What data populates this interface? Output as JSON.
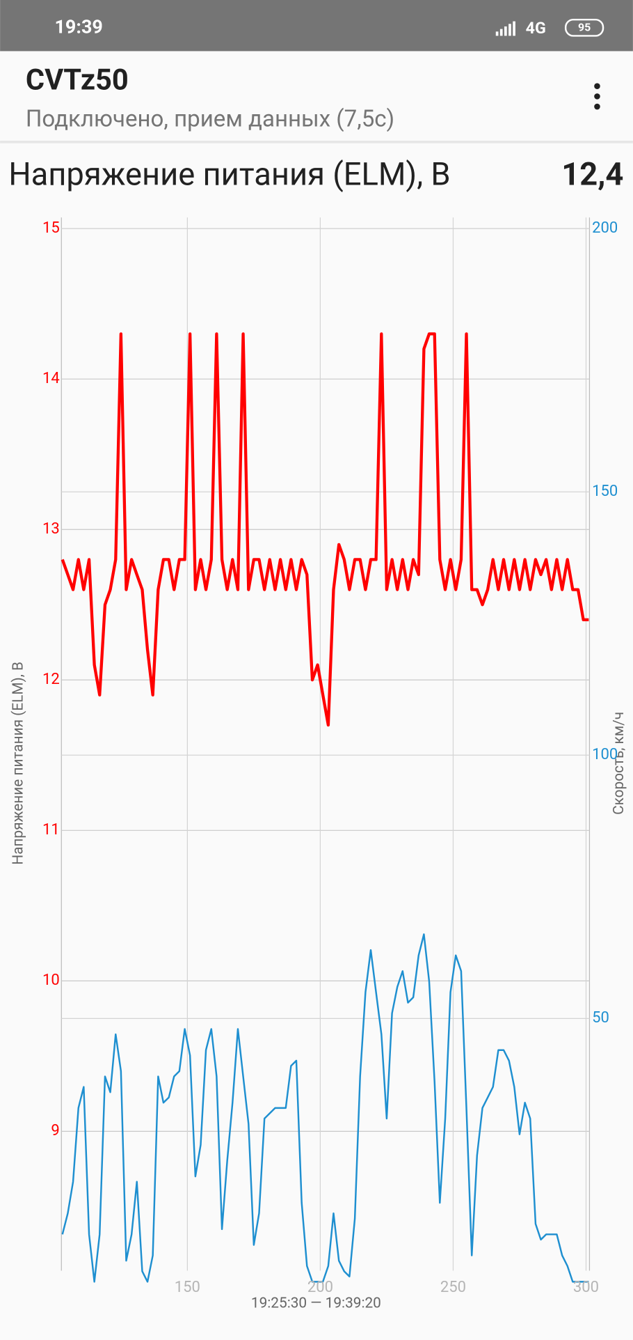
{
  "status_bar": {
    "time": "19:39",
    "network": "4G",
    "battery": "95"
  },
  "app_bar": {
    "title": "CVTz50",
    "subtitle": "Подключено, прием данных (7,5с)"
  },
  "header": {
    "label": "Напряжение питания (ELM), В",
    "value": "12,4"
  },
  "chart_data": {
    "type": "line",
    "x_label": "19:25:30 — 19:39:20",
    "y_label": "Напряжение питания (ELM), В",
    "y2_label": "Скорость, км/ч",
    "xlim": [
      102.6,
      301.3
    ],
    "xticks": [
      150,
      200,
      250,
      300
    ],
    "ylim": [
      8,
      15
    ],
    "yticks": [
      9,
      10,
      11,
      12,
      13,
      14,
      15
    ],
    "y2lim": [
      0,
      200
    ],
    "y2ticks": [
      50,
      100,
      150,
      200
    ],
    "grid": true,
    "x": [
      103,
      105,
      107,
      109,
      111,
      113,
      115,
      117,
      119,
      121,
      123,
      125,
      127,
      129,
      131,
      133,
      135,
      137,
      139,
      141,
      143,
      145,
      147,
      149,
      151,
      153,
      155,
      157,
      159,
      161,
      163,
      165,
      167,
      169,
      171,
      173,
      175,
      177,
      179,
      181,
      183,
      185,
      187,
      189,
      191,
      193,
      195,
      197,
      199,
      201,
      203,
      205,
      207,
      209,
      211,
      213,
      215,
      217,
      219,
      221,
      223,
      225,
      227,
      229,
      231,
      233,
      235,
      237,
      239,
      241,
      243,
      245,
      247,
      249,
      251,
      253,
      255,
      257,
      259,
      261,
      263,
      265,
      267,
      269,
      271,
      273,
      275,
      277,
      279,
      281,
      283,
      285,
      287,
      289,
      291,
      293,
      295,
      297,
      299,
      301
    ],
    "series": [
      {
        "name": "Напряжение питания (ELM), В",
        "color": "#ff0000",
        "axis": "y",
        "values": [
          12.8,
          12.7,
          12.6,
          12.8,
          12.6,
          12.8,
          12.1,
          11.9,
          12.5,
          12.6,
          12.8,
          14.3,
          12.6,
          12.8,
          12.7,
          12.6,
          12.2,
          11.9,
          12.6,
          12.8,
          12.8,
          12.6,
          12.8,
          12.8,
          14.3,
          12.6,
          12.8,
          12.6,
          12.8,
          14.3,
          12.8,
          12.6,
          12.8,
          12.6,
          14.3,
          12.6,
          12.8,
          12.8,
          12.6,
          12.8,
          12.6,
          12.8,
          12.6,
          12.8,
          12.6,
          12.8,
          12.7,
          12.0,
          12.1,
          11.9,
          11.7,
          12.6,
          12.9,
          12.8,
          12.6,
          12.8,
          12.8,
          12.6,
          12.8,
          12.8,
          14.3,
          12.6,
          12.8,
          12.6,
          12.8,
          12.6,
          12.8,
          12.7,
          14.2,
          14.3,
          14.3,
          12.8,
          12.6,
          12.8,
          12.6,
          12.8,
          14.3,
          12.6,
          12.6,
          12.5,
          12.6,
          12.8,
          12.6,
          12.8,
          12.6,
          12.8,
          12.6,
          12.8,
          12.6,
          12.8,
          12.7,
          12.8,
          12.6,
          12.8,
          12.6,
          12.8,
          12.6,
          12.6,
          12.4,
          12.4
        ]
      },
      {
        "name": "Скорость, км/ч",
        "color": "#1e8fd0",
        "axis": "y2",
        "values": [
          9,
          13,
          19,
          33,
          37,
          9,
          0,
          9,
          39,
          36,
          47,
          40,
          4,
          9,
          19,
          2,
          0,
          5,
          39,
          34,
          35,
          39,
          40,
          48,
          43,
          20,
          26,
          44,
          48,
          39,
          10,
          23,
          34,
          48,
          39,
          30,
          7,
          13,
          31,
          32,
          33,
          33,
          33,
          41,
          42,
          15,
          3,
          0,
          0,
          0,
          3,
          13,
          4,
          2,
          1,
          12,
          39,
          55,
          63,
          55,
          47,
          31,
          51,
          56,
          59,
          53,
          54,
          62,
          66,
          57,
          38,
          15,
          31,
          55,
          62,
          59,
          33,
          5,
          24,
          33,
          35,
          37,
          44,
          44,
          42,
          37,
          28,
          34,
          31,
          11,
          8,
          9,
          9,
          9,
          5,
          3,
          0,
          0,
          0,
          0
        ]
      }
    ]
  }
}
